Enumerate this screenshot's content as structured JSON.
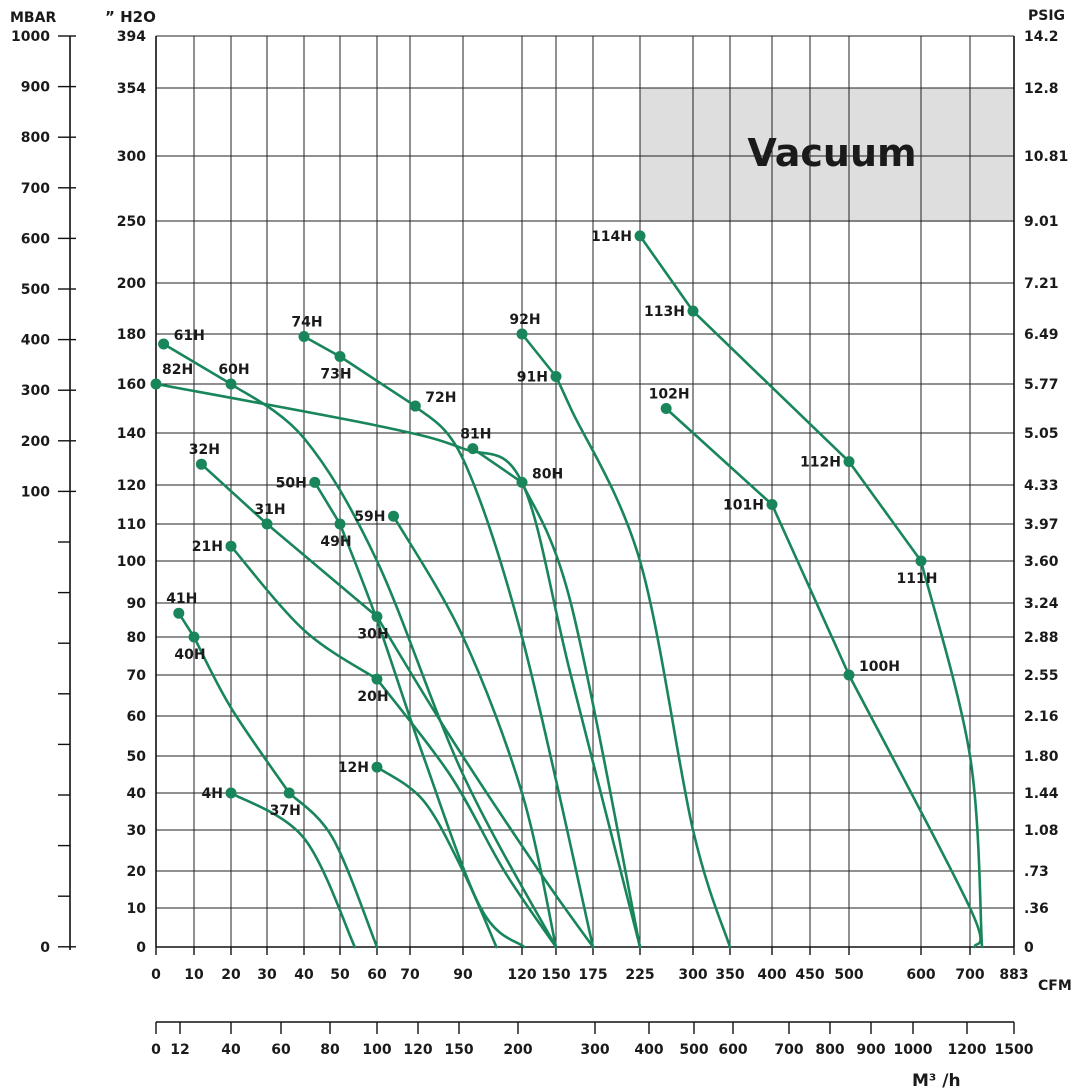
{
  "chart_data": {
    "type": "line",
    "grid": true,
    "axes": {
      "mbar_title": "MBAR",
      "h2o_title": "” H2O",
      "psig_title": "PSIG",
      "cfm_title": "CFM",
      "m3h_title": "M³ /h",
      "h2o_ticks": [
        "394",
        "354",
        "300",
        "250",
        "200",
        "180",
        "160",
        "140",
        "120",
        "110",
        "100",
        "90",
        "80",
        "70",
        "60",
        "50",
        "40",
        "30",
        "20",
        "10",
        "0"
      ],
      "psig_ticks": [
        "14.2",
        "12.8",
        "10.81",
        "9.01",
        "7.21",
        "6.49",
        "5.77",
        "5.05",
        "4.33",
        "3.97",
        "3.60",
        "3.24",
        "2.88",
        "2.55",
        "2.16",
        "1.80",
        "1.44",
        "1.08",
        ".73",
        ".36",
        "0"
      ],
      "mbar_ticks": [
        "1000",
        "900",
        "800",
        "700",
        "600",
        "500",
        "400",
        "300",
        "200",
        "100",
        "0"
      ],
      "cfm_ticks": [
        "0",
        "10",
        "20",
        "30",
        "40",
        "50",
        "60",
        "70",
        "90",
        "120",
        "150",
        "175",
        "225",
        "300",
        "350",
        "400",
        "450",
        "500",
        "600",
        "700",
        "883"
      ],
      "m3h_ticks": [
        "0",
        "12",
        "40",
        "60",
        "80",
        "100",
        "120",
        "150",
        "200",
        "300",
        "400",
        "500",
        "600",
        "700",
        "800",
        "900",
        "1000",
        "1200",
        "1500"
      ]
    },
    "banner": "Vacuum",
    "series": [
      {
        "name": "4H",
        "label_side": "left",
        "points": [
          [
            20,
            40
          ],
          [
            40,
            28
          ],
          [
            54,
            0
          ]
        ]
      },
      {
        "name": "37H",
        "label_side": "below",
        "points": [
          [
            36,
            40
          ],
          [
            48,
            28
          ],
          [
            60,
            0
          ]
        ]
      },
      {
        "name": "41H",
        "label_side": "above",
        "points": [
          [
            6,
            87
          ],
          [
            10,
            80
          ]
        ]
      },
      {
        "name": "40H",
        "label_side": "below",
        "points": [
          [
            10,
            80
          ],
          [
            20,
            62
          ],
          [
            36,
            40
          ]
        ]
      },
      {
        "name": "12H",
        "label_side": "left",
        "points": [
          [
            60,
            47
          ],
          [
            75,
            38
          ],
          [
            90,
            20
          ],
          [
            107,
            0
          ]
        ]
      },
      {
        "name": "21H",
        "label_side": "left",
        "points": [
          [
            20,
            104
          ],
          [
            40,
            82
          ],
          [
            60,
            69
          ]
        ]
      },
      {
        "name": "20H",
        "label_side": "below",
        "points": [
          [
            60,
            69
          ],
          [
            85,
            45
          ],
          [
            111,
            20
          ],
          [
            150,
            0
          ]
        ]
      },
      {
        "name": "32H",
        "label_side": "above",
        "points": [
          [
            12,
            128
          ],
          [
            30,
            110
          ]
        ]
      },
      {
        "name": "31H",
        "label_side": "above",
        "points": [
          [
            30,
            110
          ],
          [
            60,
            86
          ]
        ]
      },
      {
        "name": "30H",
        "label_side": "below",
        "points": [
          [
            60,
            86
          ],
          [
            85,
            55
          ],
          [
            135,
            20
          ],
          [
            175,
            0
          ]
        ]
      },
      {
        "name": "50H",
        "label_side": "left",
        "points": [
          [
            43,
            121
          ],
          [
            50,
            110
          ]
        ]
      },
      {
        "name": "49H",
        "label_side": "below",
        "points": [
          [
            50,
            110
          ],
          [
            60,
            85
          ],
          [
            75,
            50
          ],
          [
            99,
            10
          ],
          [
            122,
            0
          ]
        ]
      },
      {
        "name": "61H",
        "label_side": "right",
        "points": [
          [
            2,
            176
          ],
          [
            20,
            160
          ]
        ]
      },
      {
        "name": "60H",
        "label_side": "above",
        "points": [
          [
            20,
            160
          ],
          [
            40,
            138
          ],
          [
            60,
            100
          ],
          [
            90,
            45
          ],
          [
            150,
            0
          ]
        ]
      },
      {
        "name": "82H",
        "label_side": "above",
        "points": [
          [
            0,
            160
          ],
          [
            60,
            143
          ],
          [
            90,
            134
          ],
          [
            120,
            121
          ],
          [
            160,
            70
          ],
          [
            225,
            0
          ]
        ]
      },
      {
        "name": "74H",
        "label_side": "above",
        "points": [
          [
            40,
            179
          ],
          [
            50,
            171
          ]
        ]
      },
      {
        "name": "73H",
        "label_side": "below",
        "points": [
          [
            50,
            171
          ],
          [
            72,
            151
          ]
        ]
      },
      {
        "name": "72H",
        "label_side": "right",
        "points": [
          [
            72,
            151
          ],
          [
            90,
            130
          ],
          [
            120,
            80
          ],
          [
            175,
            0
          ]
        ]
      },
      {
        "name": "59H",
        "label_side": "left",
        "points": [
          [
            65,
            112
          ],
          [
            90,
            80
          ],
          [
            120,
            40
          ],
          [
            150,
            0
          ]
        ]
      },
      {
        "name": "81H",
        "label_side": "above",
        "points": [
          [
            95,
            134
          ],
          [
            120,
            121
          ]
        ]
      },
      {
        "name": "80H",
        "label_side": "right",
        "points": [
          [
            120,
            121
          ],
          [
            160,
            90
          ],
          [
            225,
            0
          ]
        ]
      },
      {
        "name": "92H",
        "label_side": "above",
        "points": [
          [
            120,
            180
          ],
          [
            150,
            163
          ]
        ]
      },
      {
        "name": "91H",
        "label_side": "left",
        "points": [
          [
            150,
            163
          ],
          [
            160,
            150
          ],
          [
            225,
            100
          ],
          [
            300,
            30
          ],
          [
            350,
            0
          ]
        ]
      },
      {
        "name": "114H",
        "label_side": "left",
        "points": [
          [
            225,
            238
          ],
          [
            300,
            189
          ]
        ]
      },
      {
        "name": "113H",
        "label_side": "left",
        "points": [
          [
            300,
            189
          ],
          [
            500,
            129
          ]
        ]
      },
      {
        "name": "112H",
        "label_side": "left",
        "points": [
          [
            500,
            129
          ],
          [
            600,
            100
          ]
        ]
      },
      {
        "name": "111H",
        "label_side": "below",
        "points": [
          [
            600,
            100
          ],
          [
            700,
            50
          ],
          [
            750,
            0
          ]
        ]
      },
      {
        "name": "102H",
        "label_side": "above",
        "points": [
          [
            262,
            150
          ],
          [
            400,
            115
          ]
        ]
      },
      {
        "name": "101H",
        "label_side": "left",
        "points": [
          [
            400,
            115
          ],
          [
            500,
            70
          ]
        ]
      },
      {
        "name": "100H",
        "label_side": "right",
        "points": [
          [
            500,
            70
          ],
          [
            700,
            10
          ],
          [
            720,
            0
          ]
        ]
      }
    ]
  }
}
